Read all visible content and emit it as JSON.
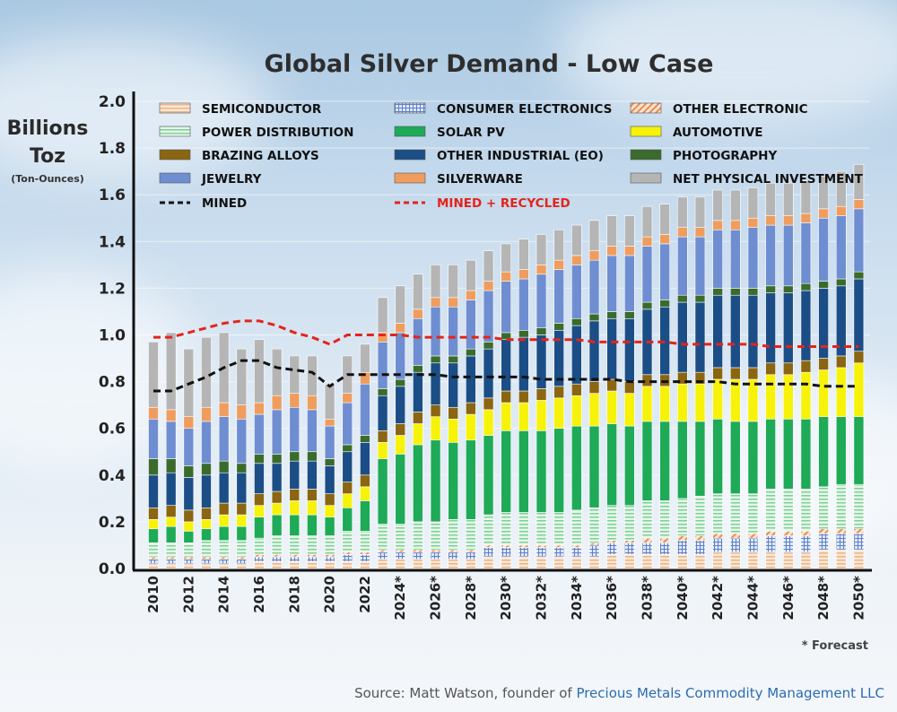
{
  "source_prefix": "Source:  Matt Watson, founder of ",
  "source_org": "Precious Metals Commodity Management LLC",
  "chart_data": {
    "type": "stacked bar",
    "title": "Global Silver Demand - Low Case",
    "ylabel_main": "Billions\nToz",
    "ylabel_sub": "(Ton-Ounces)",
    "ylim": [
      0,
      2.0
    ],
    "yticks": [
      "0.0",
      "0.2",
      "0.4",
      "0.6",
      "0.8",
      "1.0",
      "1.2",
      "1.4",
      "1.6",
      "1.8",
      "2.0"
    ],
    "x": [
      2010,
      2011,
      2012,
      2013,
      2014,
      2015,
      2016,
      2017,
      2018,
      2019,
      2020,
      2021,
      2022,
      2023,
      2024,
      2025,
      2026,
      2027,
      2028,
      2029,
      2030,
      2031,
      2032,
      2033,
      2034,
      2035,
      2036,
      2037,
      2038,
      2039,
      2040,
      2041,
      2042,
      2043,
      2044,
      2045,
      2046,
      2047,
      2048,
      2049,
      2050
    ],
    "x_tick_labels": [
      "2010",
      "2012",
      "2014",
      "2016",
      "2018",
      "2020",
      "2022",
      "2024*",
      "2026*",
      "2028*",
      "2030*",
      "2032*",
      "2034*",
      "2036*",
      "2038*",
      "2040*",
      "2042*",
      "2044*",
      "2046*",
      "2048*",
      "2050*"
    ],
    "forecast_note": "* Forecast",
    "legend_position": "top",
    "series": [
      {
        "name": "SEMICONDUCTOR",
        "color": "#f8dcc2",
        "pattern": "hstripe",
        "values": [
          0.02,
          0.02,
          0.02,
          0.02,
          0.02,
          0.02,
          0.03,
          0.03,
          0.03,
          0.03,
          0.03,
          0.03,
          0.03,
          0.04,
          0.04,
          0.04,
          0.04,
          0.04,
          0.04,
          0.05,
          0.05,
          0.05,
          0.05,
          0.05,
          0.05,
          0.05,
          0.06,
          0.06,
          0.06,
          0.06,
          0.06,
          0.06,
          0.07,
          0.07,
          0.07,
          0.07,
          0.07,
          0.07,
          0.08,
          0.08,
          0.08
        ]
      },
      {
        "name": "CONSUMER ELECTRONICS",
        "color": "#c6d4ef",
        "pattern": "grid",
        "values": [
          0.02,
          0.02,
          0.02,
          0.02,
          0.02,
          0.02,
          0.02,
          0.02,
          0.02,
          0.02,
          0.02,
          0.03,
          0.03,
          0.03,
          0.03,
          0.03,
          0.03,
          0.03,
          0.03,
          0.04,
          0.04,
          0.04,
          0.04,
          0.04,
          0.04,
          0.05,
          0.05,
          0.05,
          0.05,
          0.05,
          0.06,
          0.06,
          0.06,
          0.06,
          0.06,
          0.07,
          0.07,
          0.07,
          0.07,
          0.07,
          0.07
        ]
      },
      {
        "name": "OTHER ELECTRONIC",
        "color": "#f3c6a4",
        "pattern": "diag",
        "values": [
          0.01,
          0.01,
          0.01,
          0.01,
          0.01,
          0.01,
          0.01,
          0.01,
          0.01,
          0.01,
          0.01,
          0.01,
          0.01,
          0.01,
          0.01,
          0.01,
          0.01,
          0.01,
          0.01,
          0.01,
          0.01,
          0.01,
          0.01,
          0.01,
          0.01,
          0.01,
          0.01,
          0.01,
          0.02,
          0.02,
          0.02,
          0.02,
          0.02,
          0.02,
          0.02,
          0.02,
          0.02,
          0.02,
          0.02,
          0.02,
          0.02
        ]
      },
      {
        "name": "POWER DISTRIBUTION",
        "color": "#cfeed8",
        "pattern": "hstripe-green",
        "values": [
          0.06,
          0.06,
          0.06,
          0.07,
          0.07,
          0.07,
          0.07,
          0.08,
          0.08,
          0.08,
          0.08,
          0.09,
          0.09,
          0.11,
          0.11,
          0.12,
          0.12,
          0.13,
          0.13,
          0.13,
          0.14,
          0.14,
          0.14,
          0.14,
          0.15,
          0.15,
          0.15,
          0.15,
          0.16,
          0.16,
          0.16,
          0.17,
          0.17,
          0.17,
          0.17,
          0.18,
          0.18,
          0.18,
          0.18,
          0.19,
          0.19
        ]
      },
      {
        "name": "SOLAR PV",
        "color": "#1eaa57",
        "values": [
          0.06,
          0.07,
          0.05,
          0.05,
          0.06,
          0.06,
          0.09,
          0.09,
          0.09,
          0.09,
          0.08,
          0.1,
          0.13,
          0.28,
          0.3,
          0.33,
          0.35,
          0.33,
          0.34,
          0.34,
          0.35,
          0.35,
          0.35,
          0.36,
          0.36,
          0.35,
          0.35,
          0.34,
          0.34,
          0.34,
          0.33,
          0.32,
          0.32,
          0.31,
          0.31,
          0.3,
          0.3,
          0.3,
          0.3,
          0.29,
          0.29
        ]
      },
      {
        "name": "AUTOMOTIVE",
        "color": "#f7f20a",
        "values": [
          0.04,
          0.04,
          0.04,
          0.04,
          0.05,
          0.05,
          0.05,
          0.05,
          0.06,
          0.06,
          0.05,
          0.06,
          0.06,
          0.07,
          0.08,
          0.09,
          0.1,
          0.1,
          0.11,
          0.11,
          0.12,
          0.12,
          0.13,
          0.13,
          0.13,
          0.14,
          0.14,
          0.14,
          0.15,
          0.15,
          0.16,
          0.16,
          0.17,
          0.18,
          0.18,
          0.19,
          0.19,
          0.2,
          0.2,
          0.21,
          0.23
        ]
      },
      {
        "name": "BRAZING ALLOYS",
        "color": "#8a6512",
        "values": [
          0.05,
          0.05,
          0.05,
          0.05,
          0.05,
          0.05,
          0.05,
          0.05,
          0.05,
          0.05,
          0.05,
          0.05,
          0.05,
          0.05,
          0.05,
          0.05,
          0.05,
          0.05,
          0.05,
          0.05,
          0.05,
          0.05,
          0.05,
          0.05,
          0.05,
          0.05,
          0.05,
          0.05,
          0.05,
          0.05,
          0.05,
          0.05,
          0.05,
          0.05,
          0.05,
          0.05,
          0.05,
          0.05,
          0.05,
          0.05,
          0.05
        ]
      },
      {
        "name": "OTHER INDUSTRIAL (EO)",
        "color": "#1b4e86",
        "values": [
          0.14,
          0.14,
          0.14,
          0.14,
          0.13,
          0.13,
          0.13,
          0.12,
          0.12,
          0.12,
          0.12,
          0.13,
          0.14,
          0.15,
          0.16,
          0.17,
          0.18,
          0.19,
          0.2,
          0.21,
          0.22,
          0.23,
          0.23,
          0.24,
          0.25,
          0.26,
          0.26,
          0.27,
          0.28,
          0.29,
          0.3,
          0.3,
          0.31,
          0.31,
          0.31,
          0.3,
          0.3,
          0.3,
          0.3,
          0.3,
          0.31
        ]
      },
      {
        "name": "PHOTOGRAPHY",
        "color": "#3a6b2d",
        "values": [
          0.07,
          0.06,
          0.05,
          0.05,
          0.05,
          0.04,
          0.04,
          0.04,
          0.04,
          0.04,
          0.03,
          0.03,
          0.03,
          0.03,
          0.03,
          0.03,
          0.03,
          0.03,
          0.03,
          0.03,
          0.03,
          0.03,
          0.03,
          0.03,
          0.03,
          0.03,
          0.03,
          0.03,
          0.03,
          0.03,
          0.03,
          0.03,
          0.03,
          0.03,
          0.03,
          0.03,
          0.03,
          0.03,
          0.03,
          0.03,
          0.03
        ]
      },
      {
        "name": "JEWELRY",
        "color": "#6f8ed1",
        "values": [
          0.17,
          0.16,
          0.16,
          0.18,
          0.19,
          0.19,
          0.17,
          0.19,
          0.19,
          0.18,
          0.14,
          0.18,
          0.22,
          0.2,
          0.2,
          0.2,
          0.21,
          0.21,
          0.21,
          0.22,
          0.22,
          0.22,
          0.23,
          0.23,
          0.23,
          0.23,
          0.24,
          0.24,
          0.24,
          0.24,
          0.25,
          0.25,
          0.25,
          0.25,
          0.26,
          0.26,
          0.26,
          0.26,
          0.27,
          0.27,
          0.27
        ]
      },
      {
        "name": "SILVERWARE",
        "color": "#ef9d5e",
        "values": [
          0.05,
          0.05,
          0.05,
          0.06,
          0.06,
          0.06,
          0.05,
          0.06,
          0.06,
          0.06,
          0.03,
          0.04,
          0.05,
          0.04,
          0.04,
          0.04,
          0.04,
          0.04,
          0.04,
          0.04,
          0.04,
          0.04,
          0.04,
          0.04,
          0.04,
          0.04,
          0.04,
          0.04,
          0.04,
          0.04,
          0.04,
          0.04,
          0.04,
          0.04,
          0.04,
          0.04,
          0.04,
          0.04,
          0.04,
          0.04,
          0.04
        ]
      },
      {
        "name": "NET PHYSICAL INVESTMENT",
        "color": "#b5b5b5",
        "values": [
          0.28,
          0.33,
          0.29,
          0.3,
          0.3,
          0.24,
          0.27,
          0.2,
          0.16,
          0.17,
          0.15,
          0.16,
          0.12,
          0.15,
          0.16,
          0.15,
          0.14,
          0.14,
          0.13,
          0.13,
          0.12,
          0.13,
          0.13,
          0.13,
          0.13,
          0.13,
          0.13,
          0.13,
          0.13,
          0.13,
          0.13,
          0.13,
          0.13,
          0.13,
          0.13,
          0.14,
          0.14,
          0.14,
          0.14,
          0.15,
          0.15
        ]
      }
    ],
    "lines": [
      {
        "name": "MINED",
        "color": "#111111",
        "dash": "dashed",
        "values": [
          0.76,
          0.76,
          0.79,
          0.82,
          0.86,
          0.89,
          0.89,
          0.86,
          0.85,
          0.84,
          0.78,
          0.83,
          0.83,
          0.83,
          0.83,
          0.83,
          0.83,
          0.82,
          0.82,
          0.82,
          0.82,
          0.82,
          0.81,
          0.81,
          0.81,
          0.81,
          0.81,
          0.8,
          0.8,
          0.8,
          0.8,
          0.8,
          0.8,
          0.79,
          0.79,
          0.79,
          0.79,
          0.79,
          0.78,
          0.78,
          0.78
        ]
      },
      {
        "name": "MINED + RECYCLED",
        "color": "#e3241b",
        "dash": "dashed",
        "values": [
          0.99,
          0.99,
          1.01,
          1.03,
          1.05,
          1.06,
          1.06,
          1.04,
          1.01,
          0.99,
          0.96,
          1.0,
          1.0,
          1.0,
          1.0,
          0.99,
          0.99,
          0.99,
          0.99,
          0.99,
          0.98,
          0.98,
          0.98,
          0.98,
          0.98,
          0.97,
          0.97,
          0.97,
          0.97,
          0.97,
          0.96,
          0.96,
          0.96,
          0.96,
          0.96,
          0.95,
          0.95,
          0.95,
          0.95,
          0.95,
          0.95
        ]
      }
    ]
  }
}
